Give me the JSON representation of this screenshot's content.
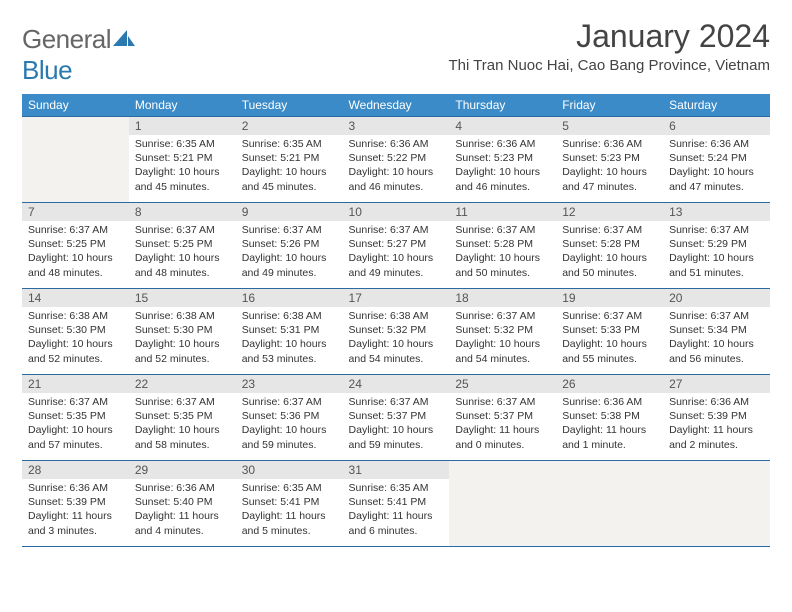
{
  "brand": {
    "part1": "General",
    "part2": "Blue"
  },
  "title": "January 2024",
  "location": "Thi Tran Nuoc Hai, Cao Bang Province, Vietnam",
  "colors": {
    "header_bg": "#3b8bc8",
    "header_text": "#ffffff",
    "daynum_bg": "#e6e6e6",
    "border": "#2a6aa0",
    "empty_bg": "#f4f2ef",
    "brand_blue": "#2a7ab0"
  },
  "day_headers": [
    "Sunday",
    "Monday",
    "Tuesday",
    "Wednesday",
    "Thursday",
    "Friday",
    "Saturday"
  ],
  "weeks": [
    [
      null,
      {
        "n": "1",
        "sr": "6:35 AM",
        "ss": "5:21 PM",
        "dl": "10 hours and 45 minutes."
      },
      {
        "n": "2",
        "sr": "6:35 AM",
        "ss": "5:21 PM",
        "dl": "10 hours and 45 minutes."
      },
      {
        "n": "3",
        "sr": "6:36 AM",
        "ss": "5:22 PM",
        "dl": "10 hours and 46 minutes."
      },
      {
        "n": "4",
        "sr": "6:36 AM",
        "ss": "5:23 PM",
        "dl": "10 hours and 46 minutes."
      },
      {
        "n": "5",
        "sr": "6:36 AM",
        "ss": "5:23 PM",
        "dl": "10 hours and 47 minutes."
      },
      {
        "n": "6",
        "sr": "6:36 AM",
        "ss": "5:24 PM",
        "dl": "10 hours and 47 minutes."
      }
    ],
    [
      {
        "n": "7",
        "sr": "6:37 AM",
        "ss": "5:25 PM",
        "dl": "10 hours and 48 minutes."
      },
      {
        "n": "8",
        "sr": "6:37 AM",
        "ss": "5:25 PM",
        "dl": "10 hours and 48 minutes."
      },
      {
        "n": "9",
        "sr": "6:37 AM",
        "ss": "5:26 PM",
        "dl": "10 hours and 49 minutes."
      },
      {
        "n": "10",
        "sr": "6:37 AM",
        "ss": "5:27 PM",
        "dl": "10 hours and 49 minutes."
      },
      {
        "n": "11",
        "sr": "6:37 AM",
        "ss": "5:28 PM",
        "dl": "10 hours and 50 minutes."
      },
      {
        "n": "12",
        "sr": "6:37 AM",
        "ss": "5:28 PM",
        "dl": "10 hours and 50 minutes."
      },
      {
        "n": "13",
        "sr": "6:37 AM",
        "ss": "5:29 PM",
        "dl": "10 hours and 51 minutes."
      }
    ],
    [
      {
        "n": "14",
        "sr": "6:38 AM",
        "ss": "5:30 PM",
        "dl": "10 hours and 52 minutes."
      },
      {
        "n": "15",
        "sr": "6:38 AM",
        "ss": "5:30 PM",
        "dl": "10 hours and 52 minutes."
      },
      {
        "n": "16",
        "sr": "6:38 AM",
        "ss": "5:31 PM",
        "dl": "10 hours and 53 minutes."
      },
      {
        "n": "17",
        "sr": "6:38 AM",
        "ss": "5:32 PM",
        "dl": "10 hours and 54 minutes."
      },
      {
        "n": "18",
        "sr": "6:37 AM",
        "ss": "5:32 PM",
        "dl": "10 hours and 54 minutes."
      },
      {
        "n": "19",
        "sr": "6:37 AM",
        "ss": "5:33 PM",
        "dl": "10 hours and 55 minutes."
      },
      {
        "n": "20",
        "sr": "6:37 AM",
        "ss": "5:34 PM",
        "dl": "10 hours and 56 minutes."
      }
    ],
    [
      {
        "n": "21",
        "sr": "6:37 AM",
        "ss": "5:35 PM",
        "dl": "10 hours and 57 minutes."
      },
      {
        "n": "22",
        "sr": "6:37 AM",
        "ss": "5:35 PM",
        "dl": "10 hours and 58 minutes."
      },
      {
        "n": "23",
        "sr": "6:37 AM",
        "ss": "5:36 PM",
        "dl": "10 hours and 59 minutes."
      },
      {
        "n": "24",
        "sr": "6:37 AM",
        "ss": "5:37 PM",
        "dl": "10 hours and 59 minutes."
      },
      {
        "n": "25",
        "sr": "6:37 AM",
        "ss": "5:37 PM",
        "dl": "11 hours and 0 minutes."
      },
      {
        "n": "26",
        "sr": "6:36 AM",
        "ss": "5:38 PM",
        "dl": "11 hours and 1 minute."
      },
      {
        "n": "27",
        "sr": "6:36 AM",
        "ss": "5:39 PM",
        "dl": "11 hours and 2 minutes."
      }
    ],
    [
      {
        "n": "28",
        "sr": "6:36 AM",
        "ss": "5:39 PM",
        "dl": "11 hours and 3 minutes."
      },
      {
        "n": "29",
        "sr": "6:36 AM",
        "ss": "5:40 PM",
        "dl": "11 hours and 4 minutes."
      },
      {
        "n": "30",
        "sr": "6:35 AM",
        "ss": "5:41 PM",
        "dl": "11 hours and 5 minutes."
      },
      {
        "n": "31",
        "sr": "6:35 AM",
        "ss": "5:41 PM",
        "dl": "11 hours and 6 minutes."
      },
      null,
      null,
      null
    ]
  ],
  "labels": {
    "sunrise": "Sunrise:",
    "sunset": "Sunset:",
    "daylight": "Daylight:"
  }
}
